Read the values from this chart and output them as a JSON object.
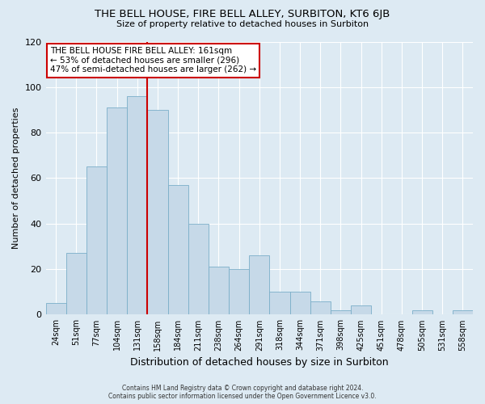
{
  "title": "THE BELL HOUSE, FIRE BELL ALLEY, SURBITON, KT6 6JB",
  "subtitle": "Size of property relative to detached houses in Surbiton",
  "xlabel": "Distribution of detached houses by size in Surbiton",
  "ylabel": "Number of detached properties",
  "bar_labels": [
    "24sqm",
    "51sqm",
    "77sqm",
    "104sqm",
    "131sqm",
    "158sqm",
    "184sqm",
    "211sqm",
    "238sqm",
    "264sqm",
    "291sqm",
    "318sqm",
    "344sqm",
    "371sqm",
    "398sqm",
    "425sqm",
    "451sqm",
    "478sqm",
    "505sqm",
    "531sqm",
    "558sqm"
  ],
  "bar_values": [
    5,
    27,
    65,
    91,
    96,
    90,
    57,
    40,
    21,
    20,
    26,
    10,
    10,
    6,
    2,
    4,
    0,
    0,
    2,
    0,
    2
  ],
  "bar_color": "#c6d9e8",
  "bar_edge_color": "#7aaec8",
  "highlight_bar_index": 5,
  "highlight_line_color": "#cc0000",
  "ylim": [
    0,
    120
  ],
  "yticks": [
    0,
    20,
    40,
    60,
    80,
    100,
    120
  ],
  "annotation_title": "THE BELL HOUSE FIRE BELL ALLEY: 161sqm",
  "annotation_line1": "← 53% of detached houses are smaller (296)",
  "annotation_line2": "47% of semi-detached houses are larger (262) →",
  "annotation_box_color": "#ffffff",
  "annotation_box_edge": "#cc0000",
  "bg_color": "#ddeaf3",
  "grid_color": "#ffffff",
  "footer1": "Contains HM Land Registry data © Crown copyright and database right 2024.",
  "footer2": "Contains public sector information licensed under the Open Government Licence v3.0."
}
